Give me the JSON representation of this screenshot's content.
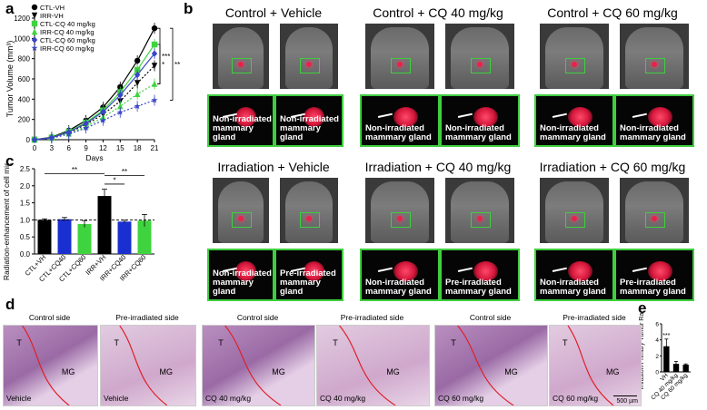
{
  "panel_letters": {
    "a": "a",
    "b": "b",
    "c": "c",
    "d": "d",
    "e": "e"
  },
  "chart_data": [
    {
      "type": "line",
      "xlabel": "Days",
      "ylabel": "Tumor Volume (mm³)",
      "x": [
        0,
        3,
        6,
        9,
        12,
        15,
        18,
        21
      ],
      "xticks": [
        "0",
        "3",
        "6",
        "9",
        "12",
        "15",
        "18",
        "21"
      ],
      "ylim": [
        0,
        1200
      ],
      "yticks": [
        "0",
        "200",
        "400",
        "600",
        "800",
        "1000",
        "1200"
      ],
      "legend_position": "top-left",
      "series": [
        {
          "name": "CTL-VH",
          "color": "#000000",
          "marker": "circle",
          "dash": "solid",
          "values": [
            0,
            25,
            90,
            190,
            320,
            520,
            780,
            1100
          ]
        },
        {
          "name": "IRR-VH",
          "color": "#000000",
          "marker": "triangle-down",
          "dash": "dotted",
          "values": [
            0,
            20,
            70,
            150,
            250,
            380,
            560,
            730
          ]
        },
        {
          "name": "CTL-CQ 40 mg/kg",
          "color": "#3fd43f",
          "marker": "square",
          "dash": "solid",
          "values": [
            0,
            22,
            80,
            170,
            290,
            470,
            690,
            940
          ]
        },
        {
          "name": "IRR-CQ 40 mg/kg",
          "color": "#3fd43f",
          "marker": "triangle-up",
          "dash": "dotted",
          "values": [
            0,
            18,
            60,
            130,
            220,
            330,
            450,
            550
          ]
        },
        {
          "name": "CTL-CQ 60 mg/kg",
          "color": "#3b45c8",
          "marker": "diamond",
          "dash": "solid",
          "values": [
            0,
            20,
            75,
            160,
            275,
            440,
            640,
            850
          ]
        },
        {
          "name": "IRR-CQ 60 mg/kg",
          "color": "#3b45c8",
          "marker": "star",
          "dash": "dotted",
          "values": [
            0,
            15,
            55,
            115,
            190,
            270,
            330,
            390
          ]
        }
      ],
      "annotations": [
        "***",
        "**",
        "*"
      ]
    },
    {
      "type": "bar",
      "ylabel": "Radiation-enhancement of cell migration",
      "categories": [
        "CTL+VH",
        "CTL+CQ40",
        "CTL+CQ60",
        "IRR+VH",
        "IRR+CQ40",
        "IRR+CQ60"
      ],
      "values": [
        1.0,
        1.02,
        0.88,
        1.7,
        0.95,
        0.98
      ],
      "errors": [
        0.03,
        0.05,
        0.1,
        0.2,
        0.04,
        0.18
      ],
      "colors": [
        "#000000",
        "#1a2fd0",
        "#3fd43f",
        "#000000",
        "#1a2fd0",
        "#3fd43f"
      ],
      "ylim": [
        0.0,
        2.5
      ],
      "yticks": [
        "0.0",
        "0.5",
        "1.0",
        "1.5",
        "2.0",
        "2.5"
      ],
      "reference_line": 1.0,
      "annotations": [
        "**",
        "*",
        "**"
      ]
    },
    {
      "type": "bar",
      "ylabel": "Invasion/Primary Tumor Ratio",
      "categories": [
        "VH",
        "CQ 40 mg/kg",
        "CQ 60 mg/kg"
      ],
      "values": [
        3.2,
        1.0,
        0.9
      ],
      "errors": [
        0.9,
        0.3,
        0.1
      ],
      "colors": [
        "#000000",
        "#000000",
        "#000000"
      ],
      "ylim": [
        0,
        6
      ],
      "yticks": [
        "0",
        "2",
        "4",
        "6"
      ],
      "annotations": [
        "***"
      ]
    }
  ],
  "panel_b": {
    "rows": [
      {
        "groups": [
          {
            "title": "Control + Vehicle",
            "captions": [
              "Non-irradiated mammary gland",
              "Non-irradiated mammary gland"
            ]
          },
          {
            "title": "Control + CQ 40 mg/kg",
            "captions": [
              "Non-irradiated mammary gland",
              "Non-irradiated mammary gland"
            ]
          },
          {
            "title": "Control + CQ 60 mg/kg",
            "captions": [
              "Non-irradiated mammary gland",
              "Non-irradiated mammary gland"
            ]
          }
        ]
      },
      {
        "groups": [
          {
            "title": "Irradiation + Vehicle",
            "captions": [
              "Non-irradiated mammary gland",
              "Pre-irradiated mammary gland"
            ]
          },
          {
            "title": "Irradiation + CQ 40 mg/kg",
            "captions": [
              "Non-irradiated mammary gland",
              "Pre-irradiated mammary gland"
            ]
          },
          {
            "title": "Irradiation + CQ 60 mg/kg",
            "captions": [
              "Non-irradiated mammary gland",
              "Pre-irradiated mammary gland"
            ]
          }
        ]
      }
    ]
  },
  "panel_d": {
    "sides": [
      "Control side",
      "Pre-irradiated side",
      "Control side",
      "Pre-irradiated side",
      "Control side",
      "Pre-irradiated side"
    ],
    "treatments": [
      "Vehicle",
      "Vehicle",
      "CQ 40 mg/kg",
      "CQ 40 mg/kg",
      "CQ 60 mg/kg",
      "CQ 60 mg/kg"
    ],
    "region_labels": {
      "t": "T",
      "mg": "MG"
    },
    "scale_bar": "500 µm"
  }
}
